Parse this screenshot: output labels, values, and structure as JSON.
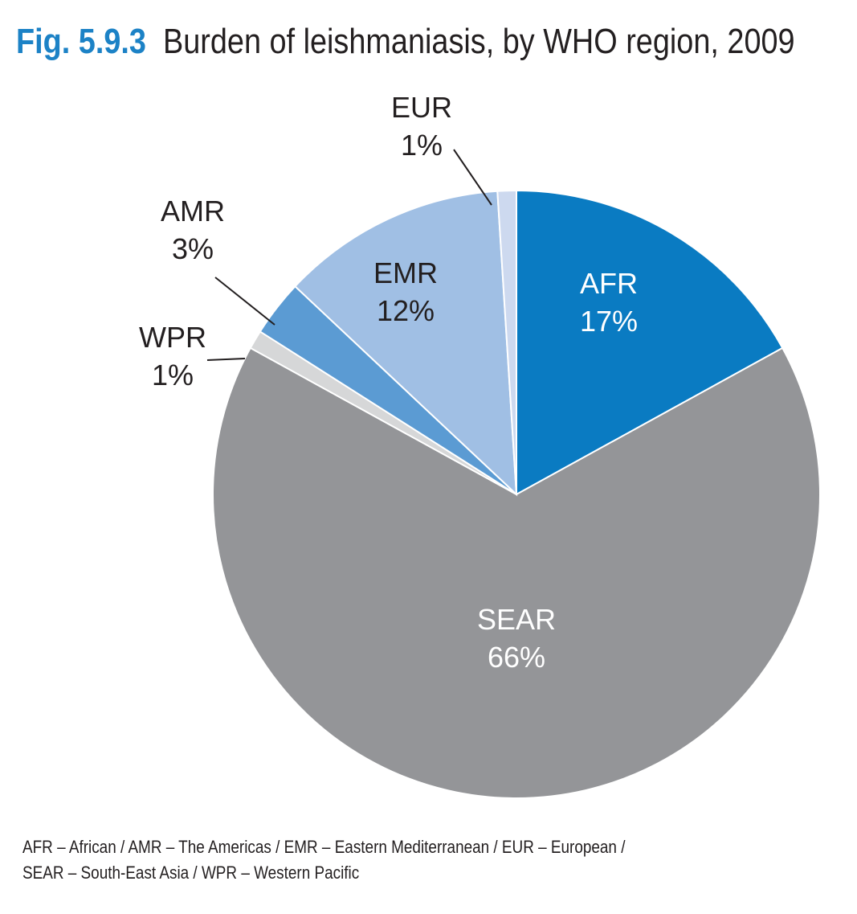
{
  "title": {
    "figure_number": "Fig. 5.9.3",
    "text": "Burden of leishmaniasis, by WHO region, 2009"
  },
  "chart_data": {
    "type": "pie",
    "title": "Burden of leishmaniasis, by WHO region, 2009",
    "start_at": "top, clockwise",
    "slices": [
      {
        "label": "AFR",
        "value": 17,
        "value_label": "17%",
        "color": "#0a7bc2",
        "label_color": "#ffffff"
      },
      {
        "label": "SEAR",
        "value": 66,
        "value_label": "66%",
        "color": "#949598",
        "label_color": "#ffffff"
      },
      {
        "label": "WPR",
        "value": 1,
        "value_label": "1%",
        "color": "#d6d7d8",
        "label_color": "#231f20"
      },
      {
        "label": "AMR",
        "value": 3,
        "value_label": "3%",
        "color": "#5b9bd3",
        "label_color": "#231f20"
      },
      {
        "label": "EMR",
        "value": 12,
        "value_label": "12%",
        "color": "#a0bfe4",
        "label_color": "#231f20"
      },
      {
        "label": "EUR",
        "value": 1,
        "value_label": "1%",
        "color": "#cdd9ef",
        "label_color": "#231f20"
      }
    ]
  },
  "footnote": {
    "line1": "AFR – African / AMR – The Americas / EMR – Eastern Mediterranean / EUR – European /",
    "line2": "SEAR – South-East Asia / WPR – Western Pacific"
  }
}
